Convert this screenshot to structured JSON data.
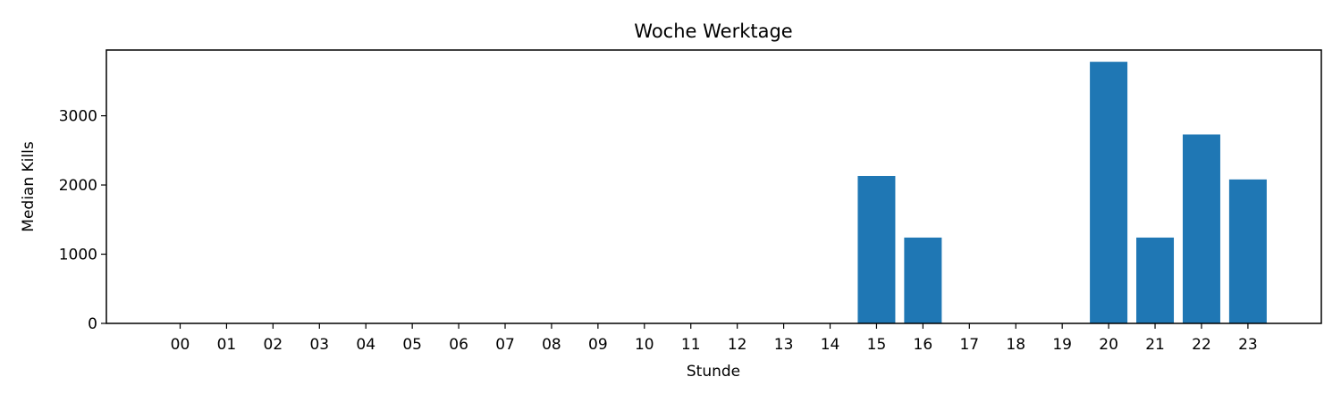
{
  "chart_data": {
    "type": "bar",
    "title": "Woche Werktage",
    "xlabel": "Stunde",
    "ylabel": "Median Kills",
    "categories": [
      "00",
      "01",
      "02",
      "03",
      "04",
      "05",
      "06",
      "07",
      "08",
      "09",
      "10",
      "11",
      "12",
      "13",
      "14",
      "15",
      "16",
      "17",
      "18",
      "19",
      "20",
      "21",
      "22",
      "23"
    ],
    "values": [
      0,
      0,
      0,
      0,
      0,
      0,
      0,
      0,
      0,
      0,
      0,
      0,
      0,
      0,
      0,
      2130,
      1240,
      0,
      0,
      0,
      3780,
      1240,
      2730,
      2080
    ],
    "ylim": [
      0,
      3950
    ],
    "yticks": [
      0,
      1000,
      2000,
      3000
    ],
    "grid": false,
    "bar_color": "#1f77b4"
  }
}
